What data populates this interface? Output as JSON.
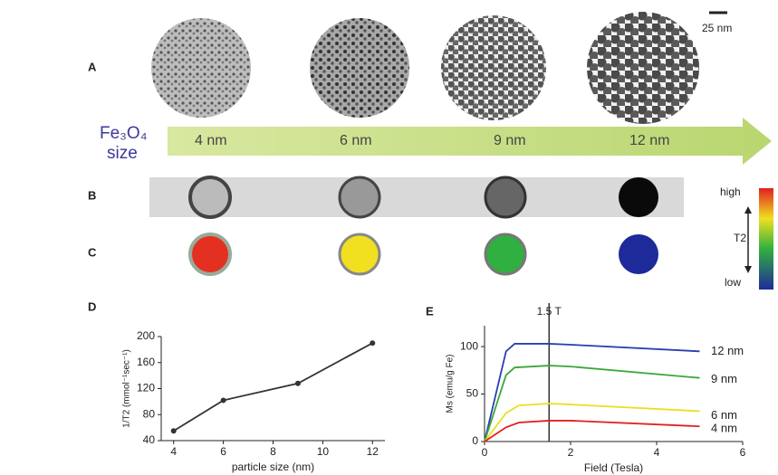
{
  "figure": {
    "scale_bar": "25 nm",
    "panel_labels": [
      "A",
      "B",
      "C",
      "D",
      "E"
    ],
    "compound": "Fe₃O₄",
    "compound_sub": "size",
    "sizes": [
      "4 nm",
      "6 nm",
      "9 nm",
      "12 nm"
    ],
    "colorbar": {
      "high": "high",
      "mid": "T2",
      "low": "low"
    }
  },
  "chart_data": [
    {
      "type": "line",
      "xlabel": "particle size (nm)",
      "ylabel": "1/T2 (mmol⁻¹sec⁻¹)",
      "xlim": [
        3.5,
        12.5
      ],
      "xticks": [
        4,
        6,
        8,
        10,
        12
      ],
      "ylim": [
        40,
        200
      ],
      "yticks": [
        40,
        80,
        120,
        160,
        200
      ],
      "series": [
        {
          "color": "#333333",
          "x": [
            4,
            6,
            9,
            12
          ],
          "values": [
            55,
            102,
            128,
            190
          ]
        }
      ]
    },
    {
      "type": "line",
      "xlabel": "Field (Tesla)",
      "ylabel": "Ms (emu/g Fe)",
      "xlim": [
        0,
        6
      ],
      "xticks": [
        0,
        2,
        4,
        6
      ],
      "ylim": [
        0,
        122
      ],
      "yticks": [
        0,
        50,
        100
      ],
      "annotations": [
        {
          "x": 1.5,
          "label": "1.5 T"
        }
      ],
      "series": [
        {
          "name": "12 nm",
          "color": "#2b3fb0",
          "x": [
            0,
            0.5,
            0.7,
            1.5,
            2,
            5
          ],
          "values": [
            0,
            95,
            103,
            103,
            102,
            95
          ]
        },
        {
          "name": "9 nm",
          "color": "#3aa83a",
          "x": [
            0,
            0.5,
            0.7,
            1.5,
            2,
            5
          ],
          "values": [
            0,
            70,
            78,
            80,
            79,
            67
          ]
        },
        {
          "name": "6 nm",
          "color": "#e8e020",
          "x": [
            0,
            0.5,
            0.8,
            1.5,
            2,
            5
          ],
          "values": [
            0,
            30,
            38,
            40,
            39,
            32
          ]
        },
        {
          "name": "4 nm",
          "color": "#e02020",
          "x": [
            0,
            0.5,
            0.8,
            1.5,
            2,
            5
          ],
          "values": [
            0,
            15,
            20,
            22,
            22,
            16
          ]
        }
      ]
    }
  ]
}
